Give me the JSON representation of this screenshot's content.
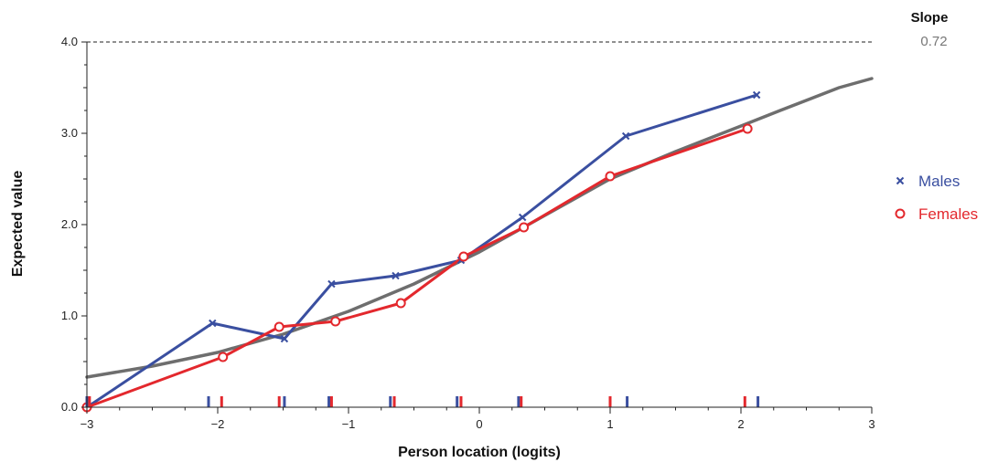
{
  "chart_data": {
    "type": "line",
    "xlabel": "Person location (logits)",
    "ylabel": "Expected value",
    "xlim": [
      -3,
      3
    ],
    "ylim": [
      0,
      4
    ],
    "x_ticks": [
      -3,
      -2,
      -1,
      0,
      1,
      2,
      3
    ],
    "x_tick_labels": [
      "−3",
      "−2",
      "−1",
      "0",
      "1",
      "2",
      "3"
    ],
    "y_ticks": [
      0,
      1,
      2,
      3,
      4
    ],
    "y_tick_labels": [
      "0.0",
      "1.0",
      "2.0",
      "3.0",
      "4.0"
    ],
    "reference_line": {
      "y": 4.0,
      "style": "dashed"
    },
    "slope": {
      "label": "Slope",
      "value": "0.72"
    },
    "legend_position": "right",
    "expected_curve": {
      "color": "#6e6e6e",
      "x": [
        -3.0,
        -2.5,
        -2.0,
        -1.5,
        -1.0,
        -0.5,
        0.0,
        0.5,
        1.0,
        1.5,
        2.0,
        2.3,
        2.75,
        3.0
      ],
      "y": [
        0.33,
        0.45,
        0.6,
        0.8,
        1.05,
        1.35,
        1.7,
        2.1,
        2.5,
        2.8,
        3.08,
        3.25,
        3.5,
        3.6
      ]
    },
    "series": [
      {
        "name": "Males",
        "color": "#3a4fa0",
        "marker": "x",
        "x": [
          -3.0,
          -2.04,
          -1.49,
          -1.13,
          -0.64,
          -0.14,
          0.33,
          1.12,
          2.12
        ],
        "y": [
          0.0,
          0.92,
          0.75,
          1.35,
          1.44,
          1.61,
          2.08,
          2.97,
          3.42
        ],
        "rug": [
          -3.0,
          -2.07,
          -1.49,
          -1.15,
          -0.68,
          -0.17,
          0.3,
          1.13,
          2.13
        ]
      },
      {
        "name": "Females",
        "color": "#e3282d",
        "marker": "o",
        "x": [
          -3.0,
          -1.96,
          -1.53,
          -1.1,
          -0.6,
          -0.12,
          0.34,
          1.0,
          2.05
        ],
        "y": [
          0.0,
          0.55,
          0.88,
          0.94,
          1.14,
          1.65,
          1.97,
          2.53,
          3.05
        ],
        "rug": [
          -2.98,
          -1.97,
          -1.53,
          -1.13,
          -0.65,
          -0.14,
          0.32,
          1.0,
          2.03
        ]
      }
    ]
  }
}
